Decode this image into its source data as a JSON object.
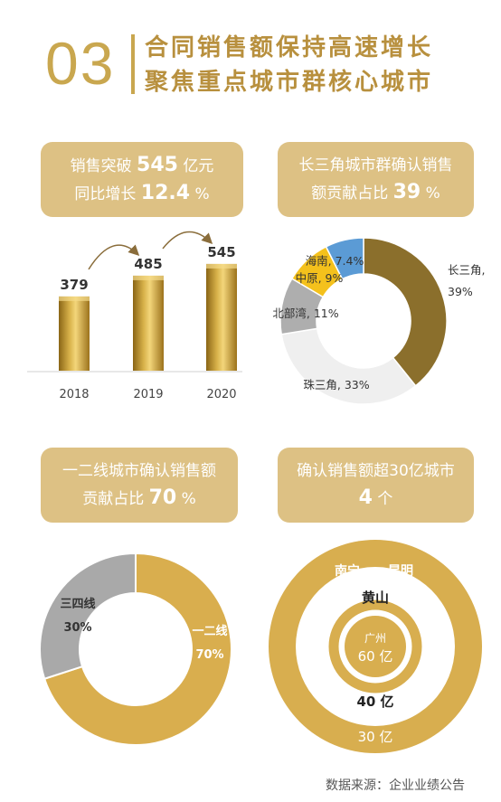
{
  "header": {
    "number": "03",
    "line1": "合同销售额保持高速增长",
    "line2": "聚焦重点城市群核心城市"
  },
  "cards": {
    "sales": {
      "line1_pre": "销售突破",
      "line1_value": "545",
      "line1_post": "亿元",
      "line2_pre": "同比增长",
      "line2_value": "12.4",
      "line2_post": "%"
    },
    "yrd": {
      "line1": "长三角城市群确认销售",
      "line2_pre": "额贡献占比",
      "line2_value": "39",
      "line2_post": "%"
    },
    "tier": {
      "line1": "一二线城市确认销售额",
      "line2_pre": "贡献占比",
      "line2_value": "70",
      "line2_post": "%"
    },
    "cities": {
      "line1": "确认销售额超30亿城市",
      "line2_value": "4",
      "line2_post": "个"
    }
  },
  "source": "数据来源：企业业绩公告",
  "chart_data": [
    {
      "type": "bar",
      "categories": [
        "2018",
        "2019",
        "2020"
      ],
      "values": [
        379,
        485,
        545
      ],
      "value_labels": [
        "379",
        "485",
        "545"
      ],
      "color": "#c29d32"
    },
    {
      "type": "pie",
      "donut": true,
      "slices": [
        {
          "label": "长三角, 39%",
          "value": 39,
          "color": "#8b6f2c"
        },
        {
          "label": "珠三角, 33%",
          "value": 33,
          "color": "#efefef"
        },
        {
          "label": "北部湾, 11%",
          "value": 11,
          "color": "#aeaeae"
        },
        {
          "label": "中原, 9%",
          "value": 9,
          "color": "#f4c11c"
        },
        {
          "label": "海南, 7.4%",
          "value": 7.4,
          "color": "#5b9bd5"
        }
      ]
    },
    {
      "type": "pie",
      "donut": true,
      "slices": [
        {
          "label": "一二线",
          "pct": "70%",
          "value": 70,
          "color": "#d9ae4e"
        },
        {
          "label": "三四线",
          "pct": "30%",
          "value": 30,
          "color": "#a9a9a9"
        }
      ]
    },
    {
      "type": "diagram",
      "rings": [
        {
          "value_label": "30 亿",
          "cities": [
            "南宁",
            "昆明"
          ],
          "color": "#d8ae4f"
        },
        {
          "value_label": "40 亿",
          "cities": [
            "黄山"
          ],
          "color": "#d8ae4f"
        },
        {
          "value_label": "60 亿",
          "cities": [
            "广州"
          ],
          "color": "#d8ae4f"
        }
      ]
    }
  ]
}
